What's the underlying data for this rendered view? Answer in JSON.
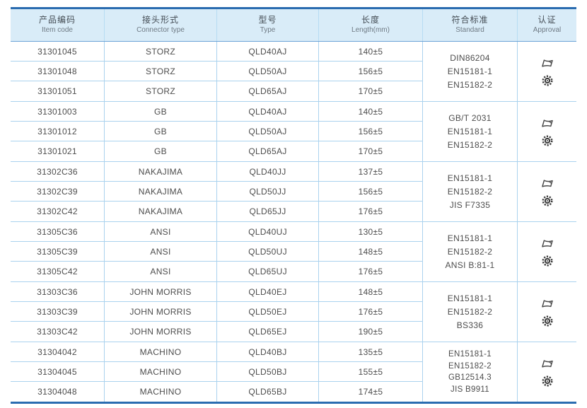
{
  "table": {
    "colors": {
      "accent_border": "#2a6cb0",
      "header_background": "#d9ecf8",
      "grid_line": "#aad2ee",
      "text": "#4d4d4d"
    },
    "columns": [
      {
        "zh": "产品编码",
        "en": "Item code"
      },
      {
        "zh": "接头形式",
        "en": "Connector type"
      },
      {
        "zh": "型号",
        "en": "Type"
      },
      {
        "zh": "长度",
        "en": "Length(mm)"
      },
      {
        "zh": "符合标准",
        "en": "Standard"
      },
      {
        "zh": "认证",
        "en": "Approval"
      }
    ],
    "groups": [
      {
        "rows": [
          {
            "code": "31301045",
            "connector": "STORZ",
            "type": "QLD40AJ",
            "length": "140±5"
          },
          {
            "code": "31301048",
            "connector": "STORZ",
            "type": "QLD50AJ",
            "length": "156±5"
          },
          {
            "code": "31301051",
            "connector": "STORZ",
            "type": "QLD65AJ",
            "length": "170±5"
          }
        ],
        "standards": [
          "DIN86204",
          "EN15181-1",
          "EN15182-2"
        ],
        "approval_icons": [
          "certificate-icon",
          "seal-icon"
        ]
      },
      {
        "rows": [
          {
            "code": "31301003",
            "connector": "GB",
            "type": "QLD40AJ",
            "length": "140±5"
          },
          {
            "code": "31301012",
            "connector": "GB",
            "type": "QLD50AJ",
            "length": "156±5"
          },
          {
            "code": "31301021",
            "connector": "GB",
            "type": "QLD65AJ",
            "length": "170±5"
          }
        ],
        "standards": [
          "GB/T 2031",
          "EN15181-1",
          "EN15182-2"
        ],
        "approval_icons": [
          "certificate-icon",
          "seal-icon"
        ]
      },
      {
        "rows": [
          {
            "code": "31302C36",
            "connector": "NAKAJIMA",
            "type": "QLD40JJ",
            "length": "137±5"
          },
          {
            "code": "31302C39",
            "connector": "NAKAJIMA",
            "type": "QLD50JJ",
            "length": "156±5"
          },
          {
            "code": "31302C42",
            "connector": "NAKAJIMA",
            "type": "QLD65JJ",
            "length": "176±5"
          }
        ],
        "standards": [
          "EN15181-1",
          "EN15182-2",
          "JIS F7335"
        ],
        "approval_icons": [
          "certificate-icon",
          "seal-icon"
        ]
      },
      {
        "rows": [
          {
            "code": "31305C36",
            "connector": "ANSI",
            "type": "QLD40UJ",
            "length": "130±5"
          },
          {
            "code": "31305C39",
            "connector": "ANSI",
            "type": "QLD50UJ",
            "length": "148±5"
          },
          {
            "code": "31305C42",
            "connector": "ANSI",
            "type": "QLD65UJ",
            "length": "176±5"
          }
        ],
        "standards": [
          "EN15181-1",
          "EN15182-2",
          "ANSI B:81-1"
        ],
        "approval_icons": [
          "certificate-icon",
          "seal-icon"
        ]
      },
      {
        "rows": [
          {
            "code": "31303C36",
            "connector": "JOHN MORRIS",
            "type": "QLD40EJ",
            "length": "148±5"
          },
          {
            "code": "31303C39",
            "connector": "JOHN MORRIS",
            "type": "QLD50EJ",
            "length": "176±5"
          },
          {
            "code": "31303C42",
            "connector": "JOHN MORRIS",
            "type": "QLD65EJ",
            "length": "190±5"
          }
        ],
        "standards": [
          "EN15181-1",
          "EN15182-2",
          "BS336"
        ],
        "approval_icons": [
          "certificate-icon",
          "seal-icon"
        ]
      },
      {
        "rows": [
          {
            "code": "31304042",
            "connector": "MACHINO",
            "type": "QLD40BJ",
            "length": "135±5"
          },
          {
            "code": "31304045",
            "connector": "MACHINO",
            "type": "QLD50BJ",
            "length": "155±5"
          },
          {
            "code": "31304048",
            "connector": "MACHINO",
            "type": "QLD65BJ",
            "length": "174±5"
          }
        ],
        "standards": [
          "EN15181-1",
          "EN15182-2",
          "GB12514.3",
          "JIS B9911"
        ],
        "approval_icons": [
          "certificate-icon",
          "seal-icon"
        ]
      }
    ]
  }
}
